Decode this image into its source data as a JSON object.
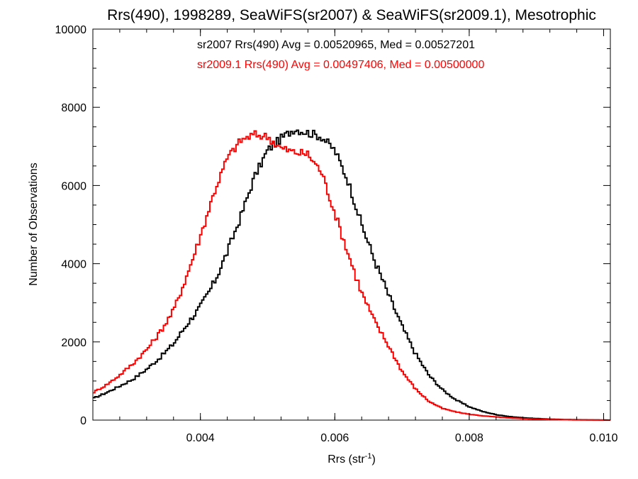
{
  "chart_data": {
    "type": "line",
    "style": "step",
    "title": "Rrs(490), 1998289, SeaWiFS(sr2007) & SeaWiFS(sr2009.1), Mesotrophic",
    "xlabel": {
      "base": "Rrs (str",
      "exp": "-1",
      "close": ")"
    },
    "ylabel": "Number of Observations",
    "xlim": [
      0.0024,
      0.0101
    ],
    "ylim": [
      0,
      10000
    ],
    "xticks": [
      0.004,
      0.006,
      0.008,
      0.01
    ],
    "xtick_labels": [
      "0.004",
      "0.006",
      "0.008",
      "0.010"
    ],
    "yticks": [
      0,
      2000,
      4000,
      6000,
      8000,
      10000
    ],
    "ytick_labels": [
      "0",
      "2000",
      "4000",
      "6000",
      "8000",
      "10000"
    ],
    "grid": false,
    "annotations": [
      {
        "text": "sr2007 Rrs(490) Avg = 0.00520965, Med = 0.00527201",
        "color": "#000000"
      },
      {
        "text": "sr2009.1 Rrs(490) Avg = 0.00497406, Med = 0.00500000",
        "color": "#ff0000"
      }
    ],
    "series": [
      {
        "color": "#000000",
        "x": [
          0.0024,
          0.0026,
          0.0028,
          0.003,
          0.0032,
          0.0034,
          0.0036,
          0.0038,
          0.004,
          0.0042,
          0.0044,
          0.0046,
          0.0048,
          0.005,
          0.0052,
          0.0054,
          0.0056,
          0.0058,
          0.006,
          0.0062,
          0.0064,
          0.0066,
          0.0068,
          0.007,
          0.0072,
          0.0074,
          0.0076,
          0.0078,
          0.008,
          0.0082,
          0.0084,
          0.0086,
          0.0088,
          0.009,
          0.0092,
          0.0094,
          0.0096,
          0.0098,
          0.0101
        ],
        "y": [
          550,
          700,
          870,
          1050,
          1300,
          1600,
          1950,
          2450,
          2900,
          3500,
          4300,
          5200,
          6200,
          6900,
          7200,
          7450,
          7350,
          7250,
          6900,
          6100,
          5000,
          4050,
          3200,
          2400,
          1700,
          1150,
          780,
          520,
          340,
          220,
          140,
          90,
          60,
          40,
          25,
          15,
          10,
          5,
          0
        ]
      },
      {
        "color": "#ff0000",
        "x": [
          0.0024,
          0.0026,
          0.0028,
          0.003,
          0.0032,
          0.0034,
          0.0036,
          0.0038,
          0.004,
          0.0042,
          0.0044,
          0.0046,
          0.0048,
          0.005,
          0.0052,
          0.0054,
          0.0056,
          0.0058,
          0.006,
          0.0062,
          0.0064,
          0.0066,
          0.0068,
          0.007,
          0.0072,
          0.0074,
          0.0076,
          0.0078,
          0.008,
          0.0082,
          0.0084,
          0.0086,
          0.0088,
          0.009,
          0.0092,
          0.0094,
          0.0096,
          0.0098,
          0.0101
        ],
        "y": [
          700,
          900,
          1150,
          1450,
          1800,
          2250,
          2800,
          3700,
          4700,
          5800,
          6700,
          7150,
          7300,
          7250,
          6950,
          6850,
          6800,
          6350,
          5300,
          4250,
          3250,
          2500,
          1900,
          1250,
          800,
          480,
          300,
          210,
          150,
          110,
          80,
          55,
          40,
          25,
          15,
          10,
          5,
          3,
          0
        ]
      }
    ]
  }
}
